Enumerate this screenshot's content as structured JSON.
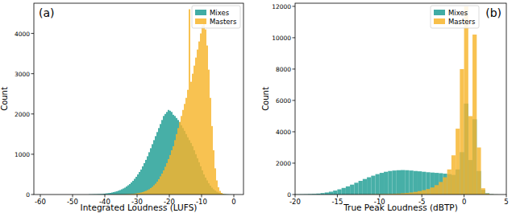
{
  "chart_data": [
    {
      "type": "histogram",
      "title": "(a)",
      "x_label": "Integrated Loudness (LUFS)",
      "y_label": "Count",
      "legend": "upper right",
      "grid": false,
      "xlim": [
        -62,
        3
      ],
      "xticks": [
        -60,
        -50,
        -40,
        -30,
        -20,
        -10,
        0
      ],
      "ylim": [
        0,
        4750
      ],
      "yticks": [
        0,
        1000,
        2000,
        3000,
        4000
      ],
      "bins": [
        -45,
        -44.5,
        -44,
        -43.5,
        -43,
        -42.5,
        -42,
        -41.5,
        -41,
        -40.5,
        -40,
        -39.5,
        -39,
        -38.5,
        -38,
        -37.5,
        -37,
        -36.5,
        -36,
        -35.5,
        -35,
        -34.5,
        -34,
        -33.5,
        -33,
        -32.5,
        -32,
        -31.5,
        -31,
        -30.5,
        -30,
        -29.5,
        -29,
        -28.5,
        -28,
        -27.5,
        -27,
        -26.5,
        -26,
        -25.5,
        -25,
        -24.5,
        -24,
        -23.5,
        -23,
        -22.5,
        -22,
        -21.5,
        -21,
        -20.5,
        -20,
        -19.5,
        -19,
        -18.5,
        -18,
        -17.5,
        -17,
        -16.5,
        -16,
        -15.5,
        -15,
        -14.5,
        -14,
        -13.5,
        -13,
        -12.5,
        -12,
        -11.5,
        -11,
        -10.5,
        -10,
        -9.5,
        -9,
        -8.5,
        -8,
        -7.5,
        -7,
        -6.5,
        -6,
        -5.5,
        -5,
        -4.5,
        -4,
        -3.5,
        -3,
        -2.5,
        -2,
        -1.5,
        -1,
        -0.5,
        0
      ],
      "series": [
        {
          "name": "Mixes",
          "color": "#1f9e94",
          "values": [
            5,
            5,
            6,
            8,
            8,
            10,
            12,
            14,
            16,
            20,
            25,
            30,
            35,
            40,
            50,
            60,
            70,
            80,
            95,
            110,
            130,
            150,
            170,
            200,
            230,
            260,
            300,
            340,
            390,
            440,
            500,
            560,
            620,
            700,
            780,
            860,
            950,
            1050,
            1150,
            1250,
            1350,
            1450,
            1550,
            1650,
            1750,
            1850,
            1950,
            2000,
            2050,
            2100,
            2080,
            2050,
            1980,
            1950,
            1900,
            1850,
            1800,
            1720,
            1650,
            1580,
            1500,
            1420,
            1350,
            1280,
            1200,
            1100,
            1000,
            900,
            800,
            700,
            600,
            500,
            420,
            350,
            280,
            220,
            170,
            130,
            100,
            70,
            50,
            35,
            25,
            15,
            10,
            6,
            4,
            2,
            1,
            0
          ]
        },
        {
          "name": "Masters",
          "color": "#f7b52c",
          "values": [
            0,
            0,
            0,
            0,
            0,
            0,
            0,
            0,
            0,
            0,
            0,
            0,
            0,
            0,
            1,
            1,
            2,
            2,
            3,
            3,
            4,
            5,
            6,
            8,
            10,
            12,
            15,
            18,
            22,
            28,
            35,
            42,
            50,
            60,
            75,
            90,
            110,
            130,
            160,
            190,
            230,
            270,
            320,
            380,
            450,
            520,
            600,
            690,
            780,
            880,
            980,
            1100,
            1200,
            1350,
            1500,
            1650,
            1800,
            1950,
            2100,
            2250,
            2400,
            2600,
            4600,
            2800,
            3000,
            3200,
            3400,
            3600,
            3800,
            4000,
            4200,
            4300,
            4100,
            3700,
            3100,
            2400,
            1700,
            1100,
            650,
            350,
            180,
            90,
            40,
            15,
            5,
            2,
            0,
            0,
            0,
            0
          ]
        }
      ]
    },
    {
      "type": "histogram",
      "title": "(b)",
      "x_label": "True Peak Loudness (dBTP)",
      "y_label": "Count",
      "legend": "upper right",
      "grid": false,
      "xlim": [
        -20,
        5
      ],
      "xticks": [
        -20,
        -15,
        -10,
        -5,
        0,
        5
      ],
      "ylim": [
        0,
        12200
      ],
      "yticks": [
        0,
        2000,
        4000,
        6000,
        8000,
        10000,
        12000
      ],
      "bins": [
        -20,
        -19.5,
        -19,
        -18.5,
        -18,
        -17.5,
        -17,
        -16.5,
        -16,
        -15.5,
        -15,
        -14.5,
        -14,
        -13.5,
        -13,
        -12.5,
        -12,
        -11.5,
        -11,
        -10.5,
        -10,
        -9.5,
        -9,
        -8.5,
        -8,
        -7.5,
        -7,
        -6.5,
        -6,
        -5.5,
        -5,
        -4.5,
        -4,
        -3.5,
        -3,
        -2.5,
        -2,
        -1.5,
        -1,
        -0.5,
        0,
        0.5,
        1,
        1.5,
        2,
        2.5,
        3,
        3.5,
        4,
        4.5,
        5
      ],
      "series": [
        {
          "name": "Mixes",
          "color": "#1f9e94",
          "values": [
            10,
            15,
            20,
            30,
            40,
            60,
            90,
            130,
            180,
            250,
            330,
            420,
            520,
            630,
            750,
            870,
            990,
            1100,
            1200,
            1300,
            1380,
            1450,
            1500,
            1530,
            1550,
            1560,
            1550,
            1530,
            1500,
            1480,
            1450,
            1420,
            1400,
            1380,
            1360,
            1330,
            1300,
            1250,
            1600,
            2700,
            5800,
            2200,
            4800,
            1500,
            300,
            80,
            20,
            5,
            0,
            0
          ]
        },
        {
          "name": "Masters",
          "color": "#f7b52c",
          "values": [
            0,
            0,
            0,
            0,
            0,
            0,
            0,
            0,
            1,
            1,
            2,
            3,
            4,
            5,
            6,
            8,
            10,
            12,
            15,
            20,
            25,
            30,
            40,
            50,
            60,
            80,
            100,
            130,
            170,
            220,
            280,
            350,
            450,
            600,
            800,
            1100,
            1600,
            2500,
            4200,
            8000,
            12000,
            5000,
            10200,
            3000,
            400,
            60,
            10,
            2,
            0,
            0
          ]
        }
      ]
    }
  ]
}
